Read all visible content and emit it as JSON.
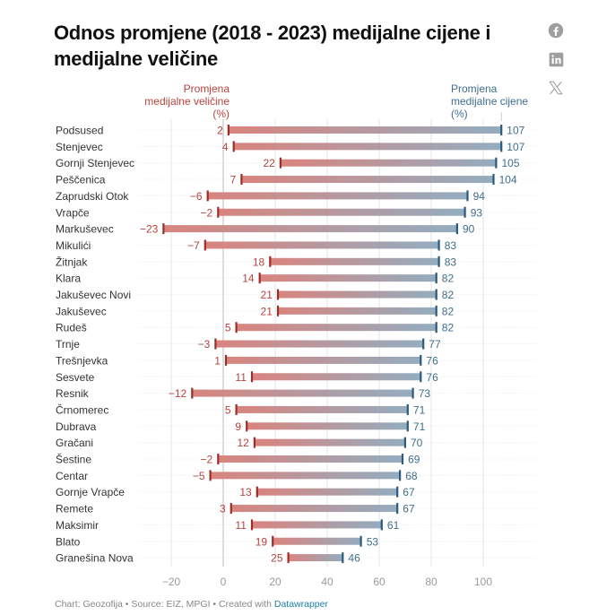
{
  "header": {
    "title": "Odnos promjene (2018 - 2023) medijalne cijene i medijalne veličine"
  },
  "share": [
    {
      "icon": "facebook-icon",
      "label": "Facebook"
    },
    {
      "icon": "linkedin-icon",
      "label": "LinkedIn"
    },
    {
      "icon": "x-icon",
      "label": "X"
    }
  ],
  "footer": {
    "credit": "Chart: Geozofija • Source: EIZ, MPGI • Created with ",
    "link": "Datawrapper"
  },
  "colors": {
    "size_color": "#b5433e",
    "price_color": "#3f6e8a",
    "bar_left": "#d9847e",
    "bar_right": "#93adc0",
    "marker_left": "#a32b26",
    "marker_right": "#2f5a75",
    "grid": "#e4e4e4",
    "tick_label": "#9a9a9a"
  },
  "chart_data": {
    "type": "range-bar",
    "title": "Odnos promjene (2018 - 2023) medijalne cijene i medijalne veličine",
    "xlabel": "",
    "ylabel": "",
    "xlim": [
      -30,
      115
    ],
    "xticks": [
      -20,
      0,
      20,
      40,
      60,
      80,
      100
    ],
    "xtick_labels": [
      "−20",
      "0",
      "20",
      "40",
      "60",
      "80",
      "100"
    ],
    "grid": true,
    "legend": {
      "left_series_label": [
        "Promjena",
        "medijalne veličine",
        "(%)"
      ],
      "right_series_label": [
        "Promjena",
        "medijalne cijene",
        "(%)"
      ],
      "placement": "top"
    },
    "categories": [
      "Podsused",
      "Stenjevec",
      "Gornji Stenjevec",
      "Peščenica",
      "Zaprudski Otok",
      "Vrapče",
      "Markuševec",
      "Mikulići",
      "Žitnjak",
      "Klara",
      "Jakuševec Novi",
      "Jakuševec",
      "Rudeš",
      "Trnje",
      "Trešnjevka",
      "Sesvete",
      "Resnik",
      "Črnomerec",
      "Dubrava",
      "Gračani",
      "Šestine",
      "Centar",
      "Gornje Vrapče",
      "Remete",
      "Maksimir",
      "Blato",
      "Granešina Nova"
    ],
    "series": [
      {
        "name": "Promjena medijalne veličine (%)",
        "values": [
          2,
          4,
          22,
          7,
          -6,
          -2,
          -23,
          -7,
          18,
          14,
          21,
          21,
          5,
          -3,
          1,
          11,
          -12,
          5,
          9,
          12,
          -2,
          -5,
          13,
          3,
          11,
          19,
          25
        ]
      },
      {
        "name": "Promjena medijalne cijene (%)",
        "values": [
          107,
          107,
          105,
          104,
          94,
          93,
          90,
          83,
          83,
          82,
          82,
          82,
          82,
          77,
          76,
          76,
          73,
          71,
          71,
          70,
          69,
          68,
          67,
          67,
          61,
          53,
          46
        ]
      }
    ]
  }
}
